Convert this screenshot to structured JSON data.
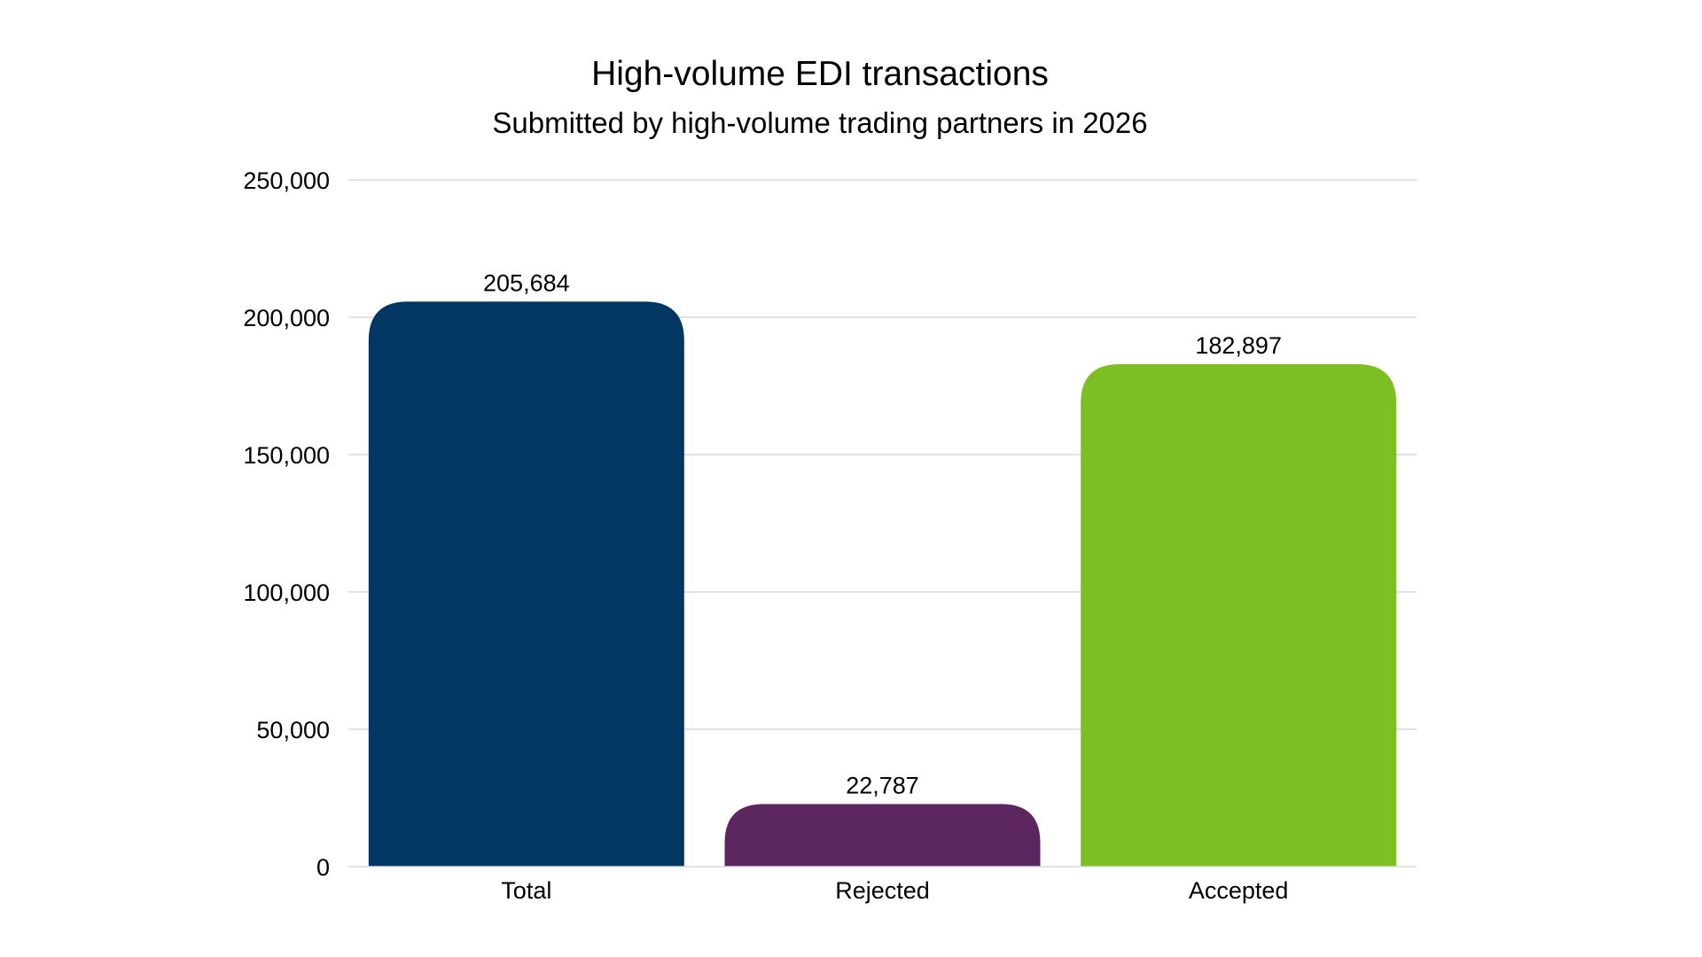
{
  "chart_data": {
    "type": "bar",
    "title": "High-volume EDI transactions",
    "subtitle": "Submitted by high-volume trading partners in 2026",
    "xlabel": "",
    "ylabel": "",
    "categories": [
      "Total",
      "Rejected",
      "Accepted"
    ],
    "values": [
      205684,
      22787,
      182897
    ],
    "value_labels": [
      "205,684",
      "22,787",
      "182,897"
    ],
    "colors": [
      "#023764",
      "#5c2760",
      "#7bbf22"
    ],
    "ylim": [
      0,
      250000
    ],
    "yticks": [
      0,
      50000,
      100000,
      150000,
      200000,
      250000
    ],
    "ytick_labels": [
      "0",
      "50,000",
      "100,000",
      "150,000",
      "200,000",
      "250,000"
    ],
    "grid": true,
    "legend": "none"
  }
}
